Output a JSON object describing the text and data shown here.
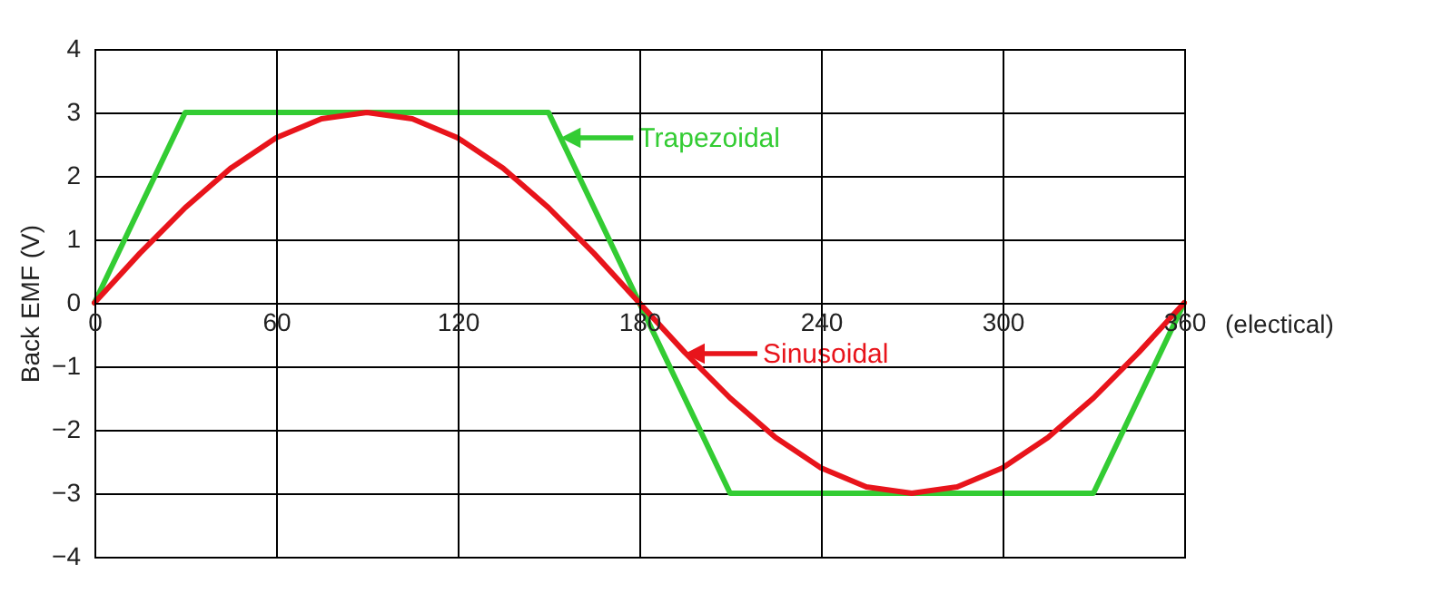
{
  "chart_data": {
    "type": "line",
    "xlabel": "(electical)",
    "ylabel": "Back EMF (V)",
    "xlim": [
      0,
      360
    ],
    "xticks": [
      0,
      60,
      120,
      180,
      240,
      300,
      360
    ],
    "ylim": [
      -4,
      4
    ],
    "yticks": [
      -4,
      -3,
      -2,
      -1,
      0,
      1,
      2,
      3,
      4
    ],
    "grid": true,
    "legend": false,
    "series": [
      {
        "color": "#33cc33",
        "x": [
          0,
          30,
          150,
          210,
          330,
          360
        ],
        "values": [
          0,
          3,
          3,
          -3,
          -3,
          0
        ]
      },
      {
        "color": "#e8141b",
        "x": [
          0,
          15,
          30,
          45,
          60,
          75,
          90,
          105,
          120,
          135,
          150,
          165,
          180,
          195,
          210,
          225,
          240,
          255,
          270,
          285,
          300,
          315,
          330,
          345,
          360
        ],
        "values": [
          0,
          0.78,
          1.5,
          2.12,
          2.6,
          2.9,
          3,
          2.9,
          2.6,
          2.12,
          1.5,
          0.78,
          0,
          -0.78,
          -1.5,
          -2.12,
          -2.6,
          -2.9,
          -3,
          -2.9,
          -2.6,
          -2.12,
          -1.5,
          -0.78,
          0
        ]
      }
    ],
    "annotations": [
      {
        "text": "Trapezoidal",
        "x": 154,
        "y": 2.6
      },
      {
        "text": "Sinusoidal",
        "x": 195,
        "y": -0.8
      }
    ]
  }
}
